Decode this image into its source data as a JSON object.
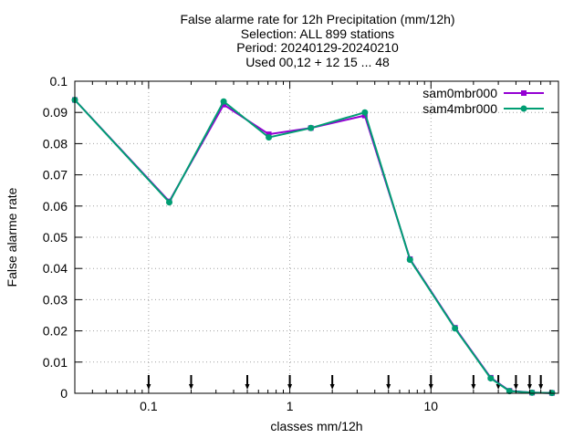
{
  "chart_data": {
    "type": "line",
    "title_lines": [
      "False alarme rate  for 12h Precipitation (mm/12h)",
      "Selection: ALL    899 stations",
      "Period: 20240129-20240210",
      "Used 00,12 + 12 15 ... 48"
    ],
    "xlabel": "classes mm/12h",
    "ylabel": "False alarme rate",
    "x_scale": "log",
    "xlim": [
      0.03,
      80
    ],
    "ylim": [
      0,
      0.1
    ],
    "grid": true,
    "legend_position": "top-right",
    "x_ticks": [
      {
        "value": 0.1,
        "label": "0.1"
      },
      {
        "value": 1,
        "label": "1"
      },
      {
        "value": 10,
        "label": "10"
      }
    ],
    "y_ticks": [
      {
        "value": 0,
        "label": "0"
      },
      {
        "value": 0.01,
        "label": "0.01"
      },
      {
        "value": 0.02,
        "label": "0.02"
      },
      {
        "value": 0.03,
        "label": "0.03"
      },
      {
        "value": 0.04,
        "label": "0.04"
      },
      {
        "value": 0.05,
        "label": "0.05"
      },
      {
        "value": 0.06,
        "label": "0.06"
      },
      {
        "value": 0.07,
        "label": "0.07"
      },
      {
        "value": 0.08,
        "label": "0.08"
      },
      {
        "value": 0.09,
        "label": "0.09"
      },
      {
        "value": 0.1,
        "label": "0.1"
      }
    ],
    "class_limits": [
      0.1,
      0.2,
      0.5,
      1,
      2,
      5,
      10,
      20,
      30,
      40,
      50,
      60
    ],
    "series": [
      {
        "name": "sam0mbr000",
        "color": "#9400d3",
        "x": [
          0.03,
          0.14,
          0.34,
          0.71,
          1.41,
          3.4,
          7.1,
          14.8,
          26.5,
          36,
          52,
          72
        ],
        "y": [
          0.094,
          0.0615,
          0.0925,
          0.083,
          0.085,
          0.089,
          0.043,
          0.021,
          0.005,
          0.0008,
          0.0002,
          0.0001
        ]
      },
      {
        "name": "sam4mbr000",
        "color": "#009e73",
        "x": [
          0.03,
          0.14,
          0.34,
          0.71,
          1.41,
          3.4,
          7.1,
          14.8,
          26.5,
          36,
          52,
          72
        ],
        "y": [
          0.094,
          0.0612,
          0.0935,
          0.082,
          0.085,
          0.09,
          0.0428,
          0.0208,
          0.0048,
          0.0007,
          0.0002,
          0.0001
        ]
      }
    ]
  }
}
